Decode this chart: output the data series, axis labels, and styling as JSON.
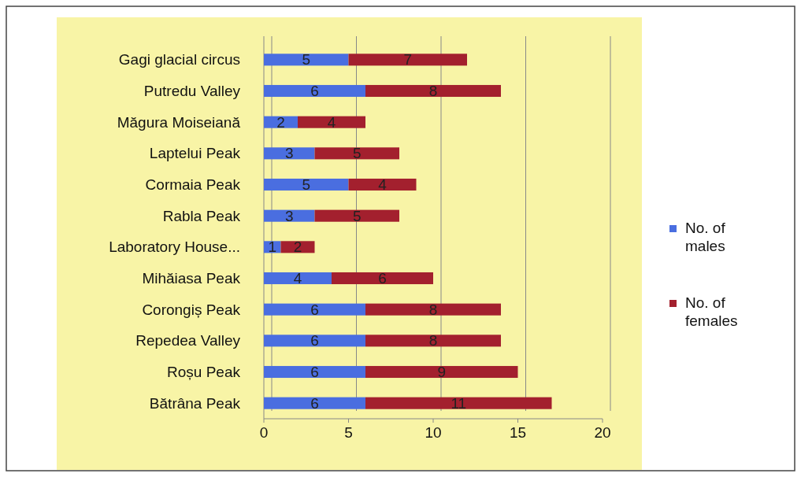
{
  "chart_data": {
    "type": "bar",
    "orientation": "horizontal",
    "stacked": true,
    "categories": [
      "Gagi glacial circus",
      "Putredu Valley",
      "Măgura Moiseiană",
      "Laptelui Peak",
      "Cormaia Peak",
      "Rabla Peak",
      "Laboratory House...",
      "Mihăiasa Peak",
      "Corongiș Peak",
      "Repedea Valley",
      "Roșu Peak",
      "Bătrâna Peak"
    ],
    "series": [
      {
        "name": "No. of males",
        "color": "#4a6ee0",
        "values": [
          5,
          6,
          2,
          3,
          5,
          3,
          1,
          4,
          6,
          6,
          6,
          6
        ]
      },
      {
        "name": "No. of females",
        "color": "#a3202e",
        "values": [
          7,
          8,
          4,
          5,
          4,
          5,
          2,
          6,
          8,
          8,
          9,
          11
        ]
      }
    ],
    "xlim": [
      0,
      20
    ],
    "xticks": [
      0,
      5,
      10,
      15,
      20
    ],
    "grid": "x",
    "legend": "right",
    "data_labels": true
  }
}
